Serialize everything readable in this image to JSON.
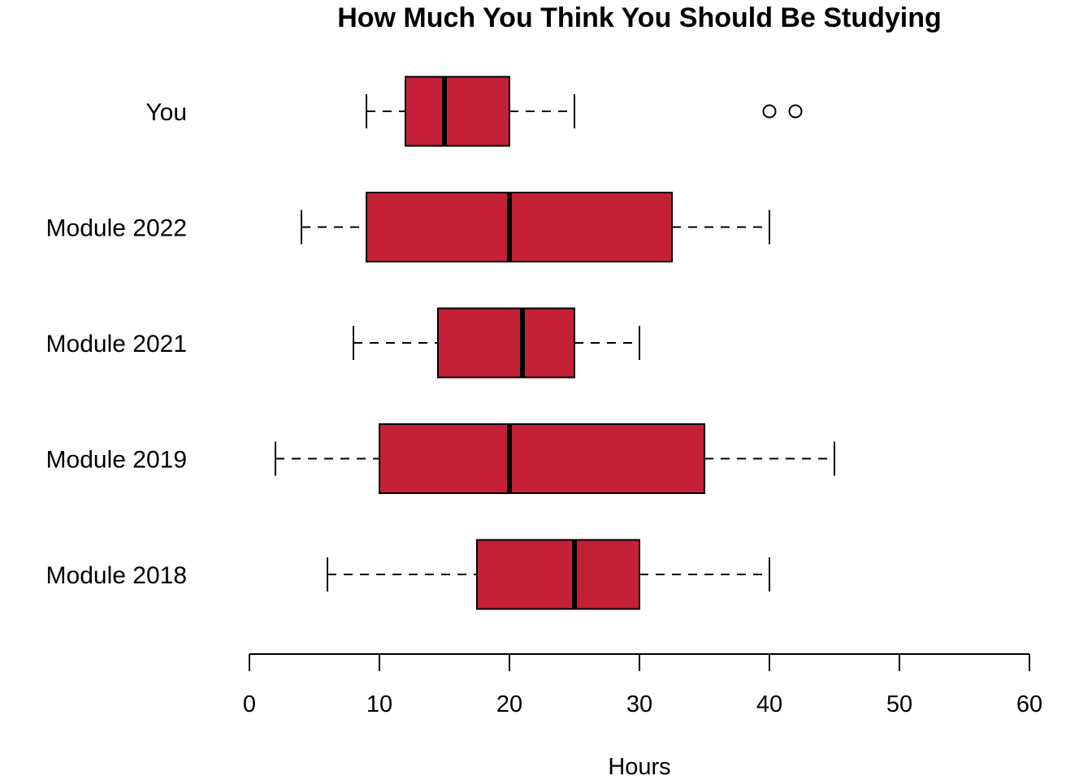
{
  "chart_data": {
    "type": "boxplot",
    "orientation": "horizontal",
    "title": "How Much You Think You Should Be Studying",
    "xlabel": "Hours",
    "ylabel": "",
    "xlim": [
      0,
      60
    ],
    "xticks": [
      0,
      10,
      20,
      30,
      40,
      50,
      60
    ],
    "box_color": "#C42139",
    "grid": false,
    "categories": [
      "You",
      "Module 2022",
      "Module 2021",
      "Module 2019",
      "Module 2018"
    ],
    "boxes": [
      {
        "label": "You",
        "whisker_low": 9,
        "q1": 12,
        "median": 15,
        "q3": 20,
        "whisker_high": 25,
        "outliers": [
          40,
          42
        ]
      },
      {
        "label": "Module 2022",
        "whisker_low": 4,
        "q1": 9,
        "median": 20,
        "q3": 32.5,
        "whisker_high": 40,
        "outliers": []
      },
      {
        "label": "Module 2021",
        "whisker_low": 8,
        "q1": 14.5,
        "median": 21,
        "q3": 25,
        "whisker_high": 30,
        "outliers": []
      },
      {
        "label": "Module 2019",
        "whisker_low": 2,
        "q1": 10,
        "median": 20,
        "q3": 35,
        "whisker_high": 45,
        "outliers": []
      },
      {
        "label": "Module 2018",
        "whisker_low": 6,
        "q1": 17.5,
        "median": 25,
        "q3": 30,
        "whisker_high": 40,
        "outliers": []
      }
    ]
  }
}
